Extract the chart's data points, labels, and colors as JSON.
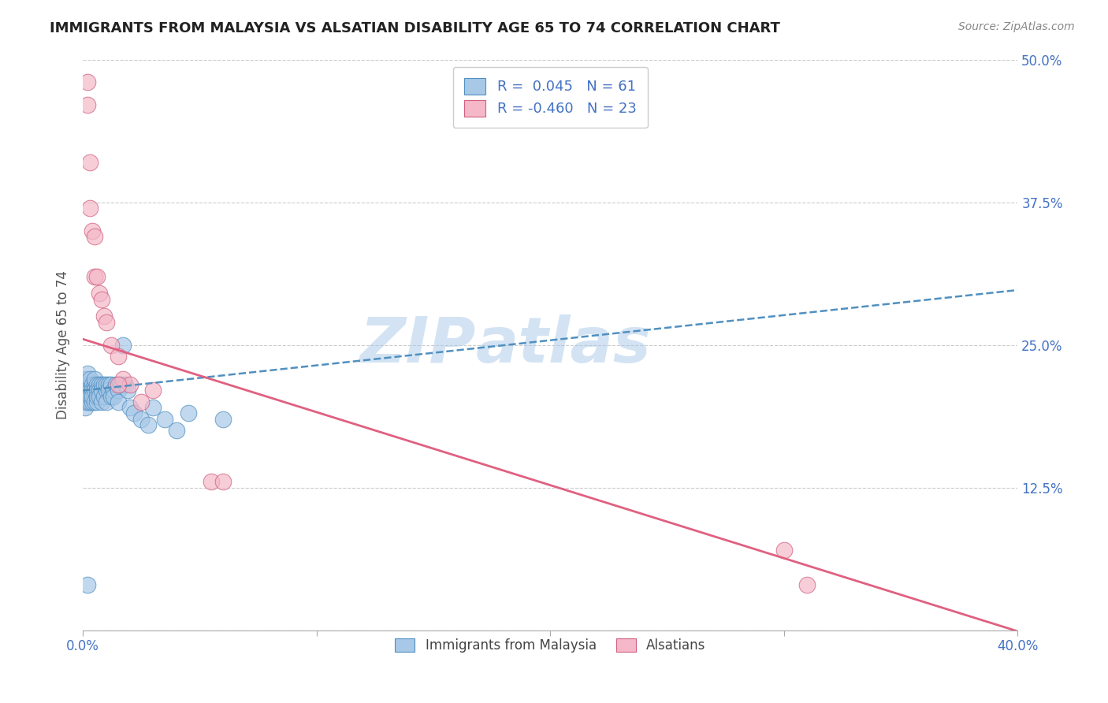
{
  "title": "IMMIGRANTS FROM MALAYSIA VS ALSATIAN DISABILITY AGE 65 TO 74 CORRELATION CHART",
  "source_text": "Source: ZipAtlas.com",
  "ylabel": "Disability Age 65 to 74",
  "xlim": [
    0.0,
    0.4
  ],
  "ylim": [
    0.0,
    0.5
  ],
  "xticks": [
    0.0,
    0.1,
    0.2,
    0.3,
    0.4
  ],
  "xtick_labels": [
    "0.0%",
    "",
    "",
    "",
    "40.0%"
  ],
  "yticks": [
    0.0,
    0.125,
    0.25,
    0.375,
    0.5
  ],
  "ytick_labels_right": [
    "",
    "12.5%",
    "25.0%",
    "37.5%",
    "50.0%"
  ],
  "blue_color": "#a8c8e8",
  "pink_color": "#f4b8c8",
  "blue_edge_color": "#5090c0",
  "pink_edge_color": "#d06080",
  "blue_line_color": "#5090c0",
  "pink_line_color": "#e06080",
  "R_blue": 0.045,
  "N_blue": 61,
  "R_pink": -0.46,
  "N_pink": 23,
  "legend_label_blue": "Immigrants from Malaysia",
  "legend_label_pink": "Alsatians",
  "watermark": "ZIPAtlas",
  "background_color": "#ffffff",
  "grid_color": "#cccccc",
  "title_color": "#222222",
  "axis_label_color": "#555555",
  "tick_color": "#4472c4",
  "blue_line_intercept": 0.21,
  "blue_line_slope": 0.22,
  "pink_line_intercept": 0.255,
  "pink_line_slope": -0.64,
  "blue_scatter_x": [
    0.001,
    0.001,
    0.001,
    0.001,
    0.001,
    0.002,
    0.002,
    0.002,
    0.002,
    0.002,
    0.003,
    0.003,
    0.003,
    0.003,
    0.003,
    0.004,
    0.004,
    0.004,
    0.004,
    0.005,
    0.005,
    0.005,
    0.005,
    0.006,
    0.006,
    0.006,
    0.006,
    0.007,
    0.007,
    0.007,
    0.008,
    0.008,
    0.008,
    0.009,
    0.009,
    0.01,
    0.01,
    0.01,
    0.011,
    0.011,
    0.012,
    0.012,
    0.013,
    0.013,
    0.014,
    0.015,
    0.015,
    0.016,
    0.017,
    0.018,
    0.019,
    0.02,
    0.022,
    0.025,
    0.028,
    0.03,
    0.035,
    0.04,
    0.045,
    0.06,
    0.002
  ],
  "blue_scatter_y": [
    0.21,
    0.215,
    0.2,
    0.22,
    0.195,
    0.215,
    0.205,
    0.2,
    0.225,
    0.21,
    0.215,
    0.2,
    0.21,
    0.22,
    0.205,
    0.215,
    0.21,
    0.2,
    0.205,
    0.215,
    0.21,
    0.2,
    0.22,
    0.215,
    0.21,
    0.2,
    0.205,
    0.215,
    0.21,
    0.205,
    0.2,
    0.215,
    0.21,
    0.215,
    0.205,
    0.21,
    0.215,
    0.2,
    0.215,
    0.21,
    0.205,
    0.215,
    0.21,
    0.205,
    0.215,
    0.21,
    0.2,
    0.215,
    0.25,
    0.215,
    0.21,
    0.195,
    0.19,
    0.185,
    0.18,
    0.195,
    0.185,
    0.175,
    0.19,
    0.185,
    0.04
  ],
  "pink_scatter_x": [
    0.002,
    0.003,
    0.004,
    0.005,
    0.005,
    0.006,
    0.007,
    0.008,
    0.009,
    0.01,
    0.012,
    0.015,
    0.017,
    0.02,
    0.025,
    0.03,
    0.055,
    0.06,
    0.002,
    0.003,
    0.015,
    0.3,
    0.31
  ],
  "pink_scatter_y": [
    0.46,
    0.41,
    0.35,
    0.345,
    0.31,
    0.31,
    0.295,
    0.29,
    0.275,
    0.27,
    0.25,
    0.24,
    0.22,
    0.215,
    0.2,
    0.21,
    0.13,
    0.13,
    0.48,
    0.37,
    0.215,
    0.07,
    0.04
  ]
}
